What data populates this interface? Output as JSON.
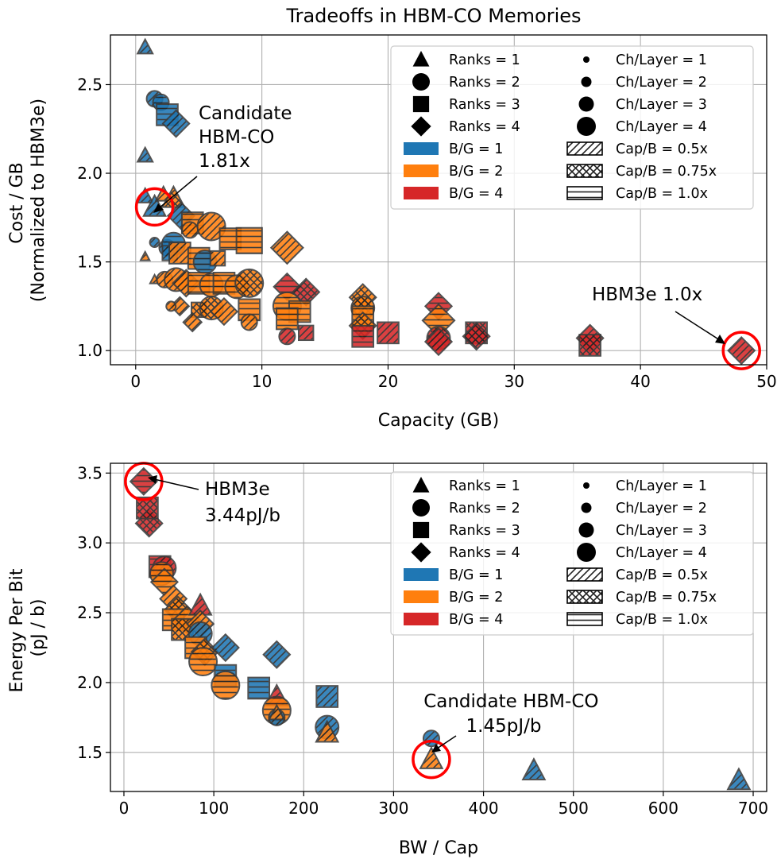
{
  "colors": {
    "bg1": "#1f77b4",
    "bg2": "#ff7f0e",
    "bg4": "#d62728",
    "highlight": "#ff0000",
    "edge": "#3a3a3a",
    "grid": "#b0b0b0"
  },
  "legend": {
    "ranks": [
      "Ranks = 1",
      "Ranks = 2",
      "Ranks = 3",
      "Ranks = 4"
    ],
    "channels": [
      "Ch/Layer = 1",
      "Ch/Layer = 2",
      "Ch/Layer = 3",
      "Ch/Layer = 4"
    ],
    "bank_groups": [
      "B/G = 1",
      "B/G = 2",
      "B/G = 4"
    ],
    "capacity": [
      "Cap/B = 0.5x",
      "Cap/B = 0.75x",
      "Cap/B = 1.0x"
    ]
  },
  "chart_data": [
    {
      "type": "scatter",
      "title": "Tradeoffs in HBM-CO Memories",
      "xlabel": "Capacity (GB)",
      "ylabel": [
        "Cost / GB",
        "(Normalized to HBM3e)"
      ],
      "xlim": [
        -2,
        50
      ],
      "ylim": [
        0.92,
        2.78
      ],
      "xticks": [
        0,
        10,
        20,
        30,
        40,
        50
      ],
      "yticks": [
        1.0,
        1.5,
        2.0,
        2.5
      ],
      "ytick_labels": [
        "1.0",
        "1.5",
        "2.0",
        "2.5"
      ],
      "annotations": [
        {
          "lines": [
            "Candidate",
            "HBM-CO",
            "1.81x"
          ],
          "target": [
            1.5,
            1.81
          ]
        },
        {
          "lines": [
            "HBM3e 1.0x"
          ],
          "target": [
            48,
            1.0
          ]
        }
      ],
      "highlights": [
        [
          1.5,
          1.81
        ],
        [
          48,
          1.0
        ]
      ],
      "points": [
        [
          0.75,
          2.71,
          1,
          1,
          2,
          0.5
        ],
        [
          0.75,
          2.1,
          1,
          1,
          2,
          0.5
        ],
        [
          1.5,
          2.42,
          2,
          1,
          2,
          0.5
        ],
        [
          2,
          2.4,
          2,
          1,
          2,
          1.0
        ],
        [
          2.5,
          2.33,
          3,
          1,
          3,
          1.0
        ],
        [
          3.2,
          2.28,
          4,
          1,
          3,
          0.5
        ],
        [
          0.75,
          1.87,
          1,
          1,
          2,
          0.5
        ],
        [
          1.5,
          1.81,
          1,
          1,
          3,
          0.5
        ],
        [
          2.2,
          1.88,
          1,
          2,
          2,
          0.5
        ],
        [
          3,
          1.86,
          1,
          2,
          3,
          0.75
        ],
        [
          3.6,
          1.76,
          4,
          1,
          3,
          0.5
        ],
        [
          4.5,
          1.72,
          3,
          2,
          3,
          1.0
        ],
        [
          4.3,
          1.68,
          2,
          2,
          2,
          0.5
        ],
        [
          6,
          1.7,
          2,
          2,
          4,
          0.5
        ],
        [
          7.5,
          1.63,
          3,
          2,
          3,
          1.0
        ],
        [
          9,
          1.62,
          3,
          2,
          4,
          1.0
        ],
        [
          12,
          1.58,
          4,
          2,
          4,
          0.5
        ],
        [
          1.5,
          1.61,
          2,
          1,
          1,
          0.5
        ],
        [
          2.5,
          1.58,
          2,
          1,
          2,
          0.5
        ],
        [
          3,
          1.6,
          2,
          1,
          3,
          1.0
        ],
        [
          2.7,
          1.55,
          3,
          1,
          2,
          0.5
        ],
        [
          3.5,
          1.55,
          3,
          2,
          3,
          0.5
        ],
        [
          5,
          1.52,
          3,
          2,
          3,
          1.0
        ],
        [
          5.5,
          1.5,
          2,
          1,
          3,
          1.0
        ],
        [
          6.5,
          1.52,
          3,
          2,
          2,
          0.5
        ],
        [
          0.75,
          1.53,
          1,
          2,
          1,
          0.5
        ],
        [
          1.5,
          1.4,
          1,
          2,
          1,
          0.5
        ],
        [
          2.3,
          1.4,
          2,
          2,
          2,
          0.5
        ],
        [
          3.2,
          1.4,
          2,
          2,
          3,
          0.5
        ],
        [
          4,
          1.38,
          4,
          2,
          3,
          0.5
        ],
        [
          5,
          1.38,
          3,
          2,
          3,
          1.0
        ],
        [
          6,
          1.37,
          2,
          2,
          3,
          1.0
        ],
        [
          7,
          1.38,
          3,
          2,
          3,
          1.0
        ],
        [
          8,
          1.36,
          2,
          2,
          3,
          1.0
        ],
        [
          9,
          1.38,
          2,
          2,
          4,
          0.75
        ],
        [
          12,
          1.36,
          4,
          4,
          3,
          1.0
        ],
        [
          13.5,
          1.33,
          4,
          4,
          3,
          0.75
        ],
        [
          12,
          1.25,
          2,
          2,
          4,
          1.0
        ],
        [
          3.5,
          1.25,
          4,
          2,
          2,
          0.5
        ],
        [
          5,
          1.23,
          3,
          2,
          2,
          0.75
        ],
        [
          6,
          1.24,
          2,
          2,
          3,
          0.75
        ],
        [
          7,
          1.22,
          4,
          2,
          3,
          0.5
        ],
        [
          9,
          1.23,
          3,
          2,
          3,
          1.0
        ],
        [
          13,
          1.22,
          3,
          2,
          3,
          1.0
        ],
        [
          12,
          1.18,
          3,
          2,
          3,
          1.0
        ],
        [
          18,
          1.3,
          4,
          2,
          3,
          0.75
        ],
        [
          18,
          1.24,
          2,
          2,
          3,
          0.75
        ],
        [
          18,
          1.19,
          3,
          2,
          3,
          1.0
        ],
        [
          18,
          1.14,
          4,
          2,
          3,
          0.75
        ],
        [
          18,
          1.08,
          3,
          4,
          3,
          1.0
        ],
        [
          20,
          1.1,
          3,
          4,
          3,
          0.5
        ],
        [
          24,
          1.25,
          4,
          4,
          3,
          1.0
        ],
        [
          24,
          1.17,
          4,
          2,
          4,
          1.0
        ],
        [
          24,
          1.07,
          2,
          4,
          3,
          0.75
        ],
        [
          24,
          1.05,
          4,
          4,
          3,
          0.5
        ],
        [
          27,
          1.1,
          3,
          4,
          3,
          0.75
        ],
        [
          27,
          1.08,
          4,
          4,
          3,
          0.75
        ],
        [
          36,
          1.07,
          4,
          4,
          3,
          0.5
        ],
        [
          36,
          1.03,
          3,
          4,
          3,
          0.75
        ],
        [
          48,
          1.0,
          4,
          4,
          3,
          0.5
        ],
        [
          2.8,
          1.25,
          2,
          2,
          1,
          0.5
        ],
        [
          4.5,
          1.16,
          4,
          2,
          2,
          0.5
        ],
        [
          9,
          1.16,
          2,
          2,
          2,
          0.5
        ],
        [
          12,
          1.08,
          2,
          4,
          2,
          0.5
        ],
        [
          13.5,
          1.1,
          3,
          4,
          2,
          0.5
        ]
      ]
    },
    {
      "type": "scatter",
      "xlabel": "BW / Cap",
      "ylabel": [
        "Energy Per Bit",
        "(pJ / b)"
      ],
      "xlim": [
        -15,
        715
      ],
      "ylim": [
        1.22,
        3.57
      ],
      "xticks": [
        0,
        100,
        200,
        300,
        400,
        500,
        600,
        700
      ],
      "yticks": [
        1.5,
        2.0,
        2.5,
        3.0,
        3.5
      ],
      "ytick_labels": [
        "1.5",
        "2.0",
        "2.5",
        "3.0",
        "3.5"
      ],
      "annotations": [
        {
          "lines": [
            "HBM3e",
            "3.44pJ/b"
          ],
          "target": [
            22,
            3.44
          ]
        },
        {
          "lines": [
            "Candidate HBM-CO",
            "1.45pJ/b"
          ],
          "target": [
            342,
            1.45
          ]
        }
      ],
      "highlights": [
        [
          22,
          3.44
        ],
        [
          342,
          1.45
        ]
      ],
      "points": [
        [
          22,
          3.44,
          4,
          4,
          3,
          1.0
        ],
        [
          28,
          3.14,
          4,
          4,
          3,
          0.75
        ],
        [
          26,
          3.25,
          3,
          4,
          3,
          0.75
        ],
        [
          40,
          2.83,
          3,
          4,
          3,
          1.0
        ],
        [
          45,
          2.82,
          2,
          4,
          3,
          0.5
        ],
        [
          42,
          2.78,
          2,
          2,
          3,
          1.0
        ],
        [
          45,
          2.72,
          4,
          2,
          3,
          1.0
        ],
        [
          55,
          2.6,
          4,
          2,
          3,
          0.5
        ],
        [
          60,
          2.52,
          4,
          2,
          3,
          0.75
        ],
        [
          55,
          2.45,
          3,
          2,
          3,
          1.0
        ],
        [
          70,
          2.45,
          4,
          2,
          3,
          1.0
        ],
        [
          65,
          2.38,
          3,
          2,
          3,
          0.75
        ],
        [
          85,
          2.55,
          1,
          4,
          3,
          0.5
        ],
        [
          85,
          2.42,
          4,
          2,
          3,
          0.5
        ],
        [
          85,
          2.35,
          2,
          1,
          3,
          0.5
        ],
        [
          80,
          2.25,
          3,
          2,
          3,
          1.0
        ],
        [
          90,
          2.22,
          4,
          2,
          3,
          0.75
        ],
        [
          88,
          2.15,
          2,
          2,
          4,
          1.0
        ],
        [
          113,
          2.25,
          4,
          1,
          3,
          0.5
        ],
        [
          113,
          2.05,
          3,
          1,
          3,
          1.0
        ],
        [
          113,
          1.98,
          2,
          2,
          4,
          1.0
        ],
        [
          150,
          1.96,
          3,
          1,
          3,
          1.0
        ],
        [
          170,
          2.2,
          4,
          1,
          3,
          0.5
        ],
        [
          170,
          1.9,
          1,
          4,
          3,
          0.5
        ],
        [
          170,
          1.8,
          2,
          2,
          4,
          1.0
        ],
        [
          170,
          1.75,
          2,
          1,
          2,
          0.5
        ],
        [
          170,
          1.78,
          1,
          2,
          2,
          0.5
        ],
        [
          226,
          1.9,
          3,
          1,
          3,
          0.5
        ],
        [
          226,
          1.68,
          2,
          1,
          3,
          0.5
        ],
        [
          226,
          1.64,
          1,
          2,
          3,
          0.5
        ],
        [
          342,
          1.6,
          2,
          1,
          2,
          0.5
        ],
        [
          342,
          1.45,
          1,
          2,
          3,
          0.5
        ],
        [
          456,
          1.37,
          1,
          1,
          3,
          0.5
        ],
        [
          684,
          1.3,
          1,
          1,
          3,
          0.5
        ]
      ]
    }
  ]
}
